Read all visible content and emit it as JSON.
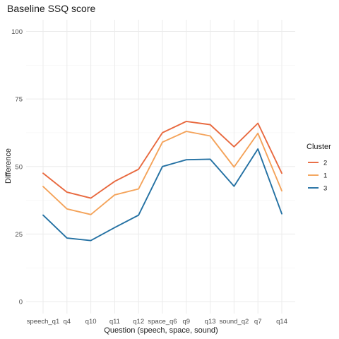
{
  "chart_data": {
    "type": "line",
    "title": "Baseline SSQ score",
    "xlabel": "Question (speech, space, sound)",
    "ylabel": "Difference",
    "categories": [
      "speech_q1",
      "q4",
      "q10",
      "q11",
      "q12",
      "space_q6",
      "q9",
      "q13",
      "sound_q2",
      "q7",
      "q14"
    ],
    "ylim": [
      0,
      100
    ],
    "yticks": [
      0,
      25,
      50,
      75,
      100
    ],
    "grid": true,
    "legend": {
      "title": "Cluster",
      "position": "right"
    },
    "series": [
      {
        "name": "2",
        "color": "#e8693f",
        "values": [
          47.5,
          40.5,
          38.3,
          44.5,
          49.0,
          62.5,
          66.7,
          65.5,
          57.3,
          66.0,
          47.5
        ]
      },
      {
        "name": "1",
        "color": "#f4a35a",
        "values": [
          42.6,
          34.3,
          32.2,
          39.5,
          41.7,
          59.0,
          63.0,
          61.3,
          49.8,
          62.3,
          41.0
        ]
      },
      {
        "name": "3",
        "color": "#2471a3",
        "values": [
          32.0,
          23.5,
          22.6,
          27.4,
          32.0,
          50.0,
          52.5,
          52.7,
          42.7,
          56.5,
          32.5
        ]
      }
    ]
  }
}
